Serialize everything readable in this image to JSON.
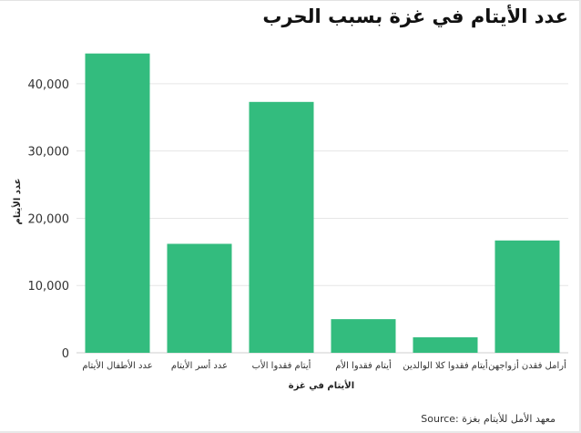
{
  "chart_data": {
    "type": "bar",
    "title": "عدد الأيتام في غزة بسبب الحرب",
    "xlabel": "الأيتام في غزة",
    "ylabel": "عدد الأيتام",
    "categories": [
      "عدد الأطفال الأيتام",
      "عدد أسر الأيتام",
      "أيتام فقدوا الأب",
      "أيتام فقدوا الأم",
      "أيتام فقدوا كلا الوالدين",
      "أرامل فقدن أزواجهن"
    ],
    "values": [
      44500,
      16200,
      37300,
      5000,
      2300,
      16700
    ],
    "ylim": [
      0,
      45000
    ],
    "yticks": [
      0,
      10000,
      20000,
      30000,
      40000
    ],
    "ytick_labels": [
      "0",
      "10,000",
      "20,000",
      "30,000",
      "40,000"
    ],
    "grid": true,
    "bar_color": "#33bc7e"
  },
  "source": "Source: معهد الأمل للأيتام بغزة"
}
